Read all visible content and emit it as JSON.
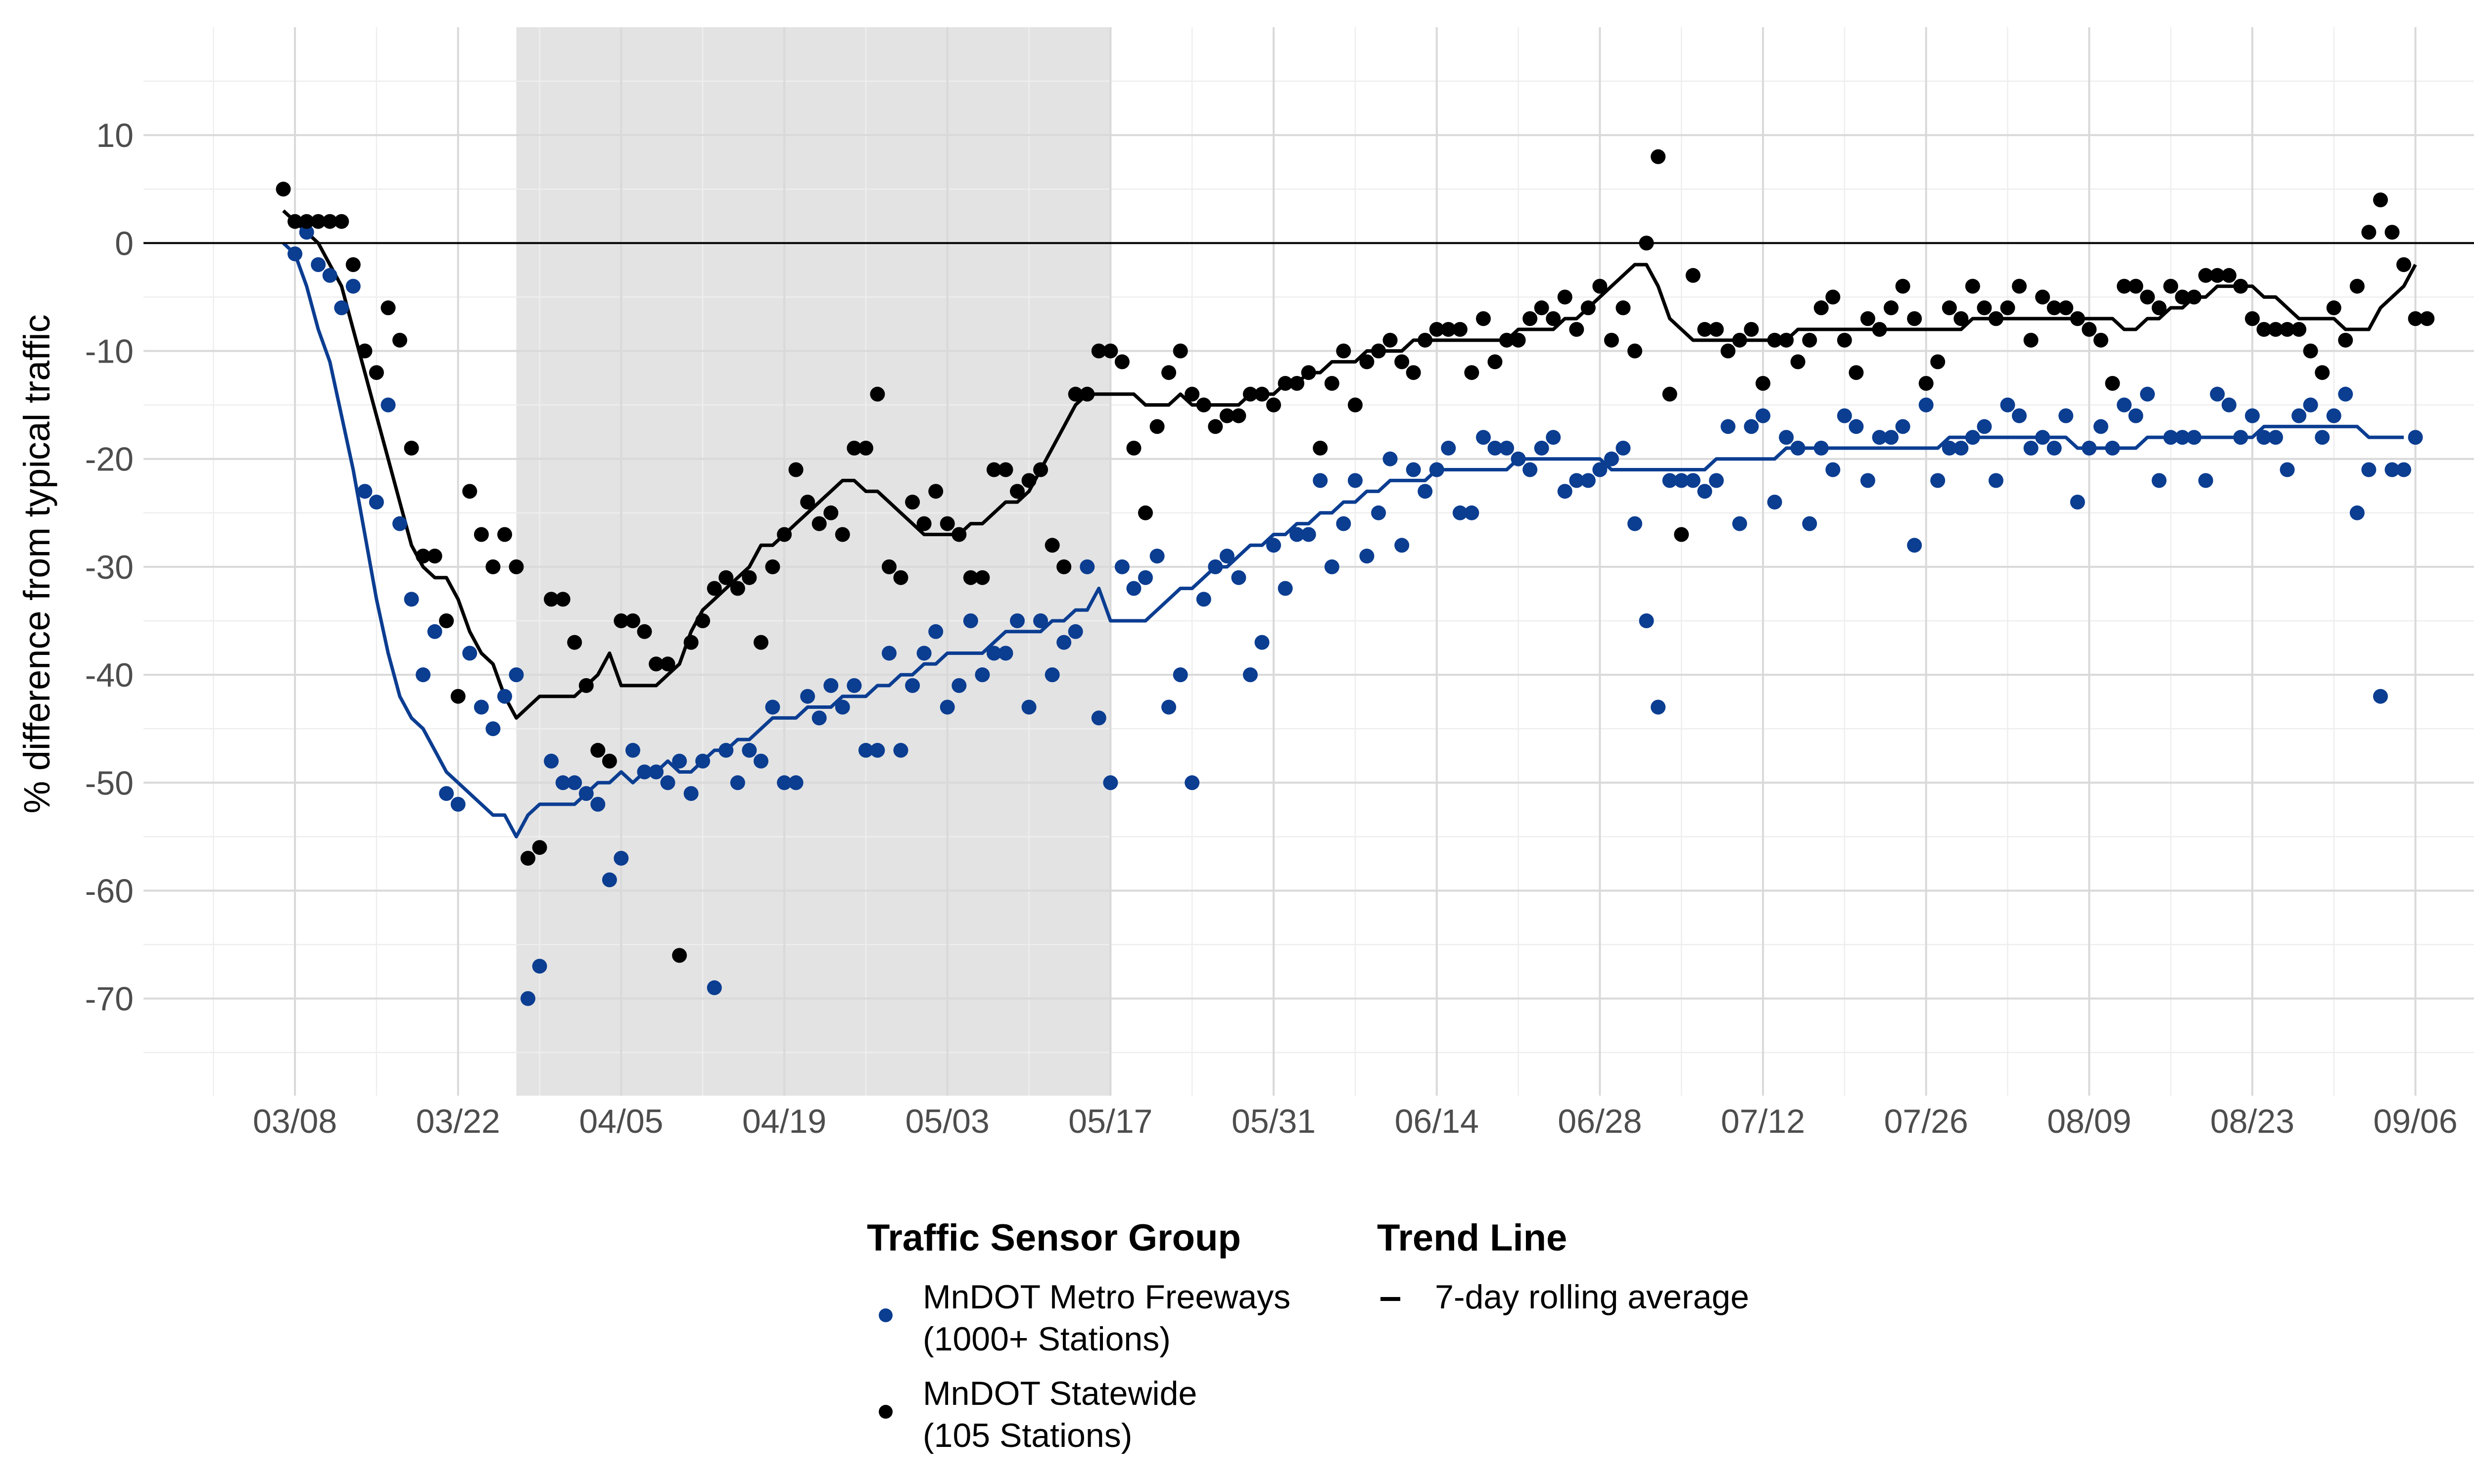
{
  "chart_data": {
    "type": "scatter",
    "title": "",
    "ylabel": "% difference from typical traffic",
    "xlabel": "",
    "x_axis": {
      "type": "date",
      "range": [
        "2020-02-24",
        "2020-09-14"
      ],
      "ticks": [
        {
          "date": "2020-03-08",
          "label": "03/08"
        },
        {
          "date": "2020-03-22",
          "label": "03/22"
        },
        {
          "date": "2020-04-05",
          "label": "04/05"
        },
        {
          "date": "2020-04-19",
          "label": "04/19"
        },
        {
          "date": "2020-05-03",
          "label": "05/03"
        },
        {
          "date": "2020-05-17",
          "label": "05/17"
        },
        {
          "date": "2020-05-31",
          "label": "05/31"
        },
        {
          "date": "2020-06-14",
          "label": "06/14"
        },
        {
          "date": "2020-06-28",
          "label": "06/28"
        },
        {
          "date": "2020-07-12",
          "label": "07/12"
        },
        {
          "date": "2020-07-26",
          "label": "07/26"
        },
        {
          "date": "2020-08-09",
          "label": "08/09"
        },
        {
          "date": "2020-08-23",
          "label": "08/23"
        },
        {
          "date": "2020-09-06",
          "label": "09/06"
        }
      ]
    },
    "y_axis": {
      "range": [
        -79,
        20
      ],
      "ticks": [
        10,
        0,
        -10,
        -20,
        -30,
        -40,
        -50,
        -60,
        -70
      ],
      "tick_labels": [
        "10",
        "0",
        "-10",
        "-20",
        "-30",
        "-40",
        "-50",
        "-60",
        "-70"
      ]
    },
    "grid": true,
    "reference_line_y": 0,
    "shaded_region": {
      "start": "2020-03-27",
      "end": "2020-05-17"
    },
    "legend": {
      "position": "bottom",
      "point_title": "Traffic Sensor Group",
      "line_title": "Trend Line",
      "line_label": "7-day rolling average"
    },
    "colors": {
      "metro": "#0B3D91",
      "statewide": "#000000",
      "shade": "#E3E3E3",
      "grid_major": "#D9D9D9",
      "grid_minor": "#EEEEEE"
    },
    "series": [
      {
        "name": "MnDOT Metro Freeways (1000+ Stations)",
        "label_lines": [
          "MnDOT Metro Freeways",
          "(1000+ Stations)"
        ],
        "color": "#0B3D91",
        "start_date": "2020-03-08",
        "values": [
          -1,
          1,
          -2,
          -3,
          -6,
          -4,
          -23,
          -24,
          -15,
          -26,
          -33,
          -40,
          -36,
          -51,
          -52,
          -38,
          -43,
          -45,
          -42,
          -40,
          -70,
          -67,
          -48,
          -50,
          -50,
          -51,
          -52,
          -59,
          -57,
          -47,
          -49,
          -49,
          -50,
          -48,
          -51,
          -48,
          -69,
          -47,
          -50,
          -47,
          -48,
          -43,
          -50,
          -50,
          -42,
          -44,
          -41,
          -43,
          -41,
          -47,
          -47,
          -38,
          -47,
          -41,
          -38,
          -36,
          -43,
          -41,
          -35,
          -40,
          -38,
          -38,
          -35,
          -43,
          -35,
          -40,
          -37,
          -36,
          -30,
          -44,
          -50,
          -30,
          -32,
          -31,
          -29,
          -43,
          -40,
          -50,
          -33,
          -30,
          -29,
          -31,
          -40,
          -37,
          -28,
          -32,
          -27,
          -27,
          -22,
          -30,
          -26,
          -22,
          -29,
          -25,
          -20,
          -28,
          -21,
          -23,
          -21,
          -19,
          -25,
          -25,
          -18,
          -19,
          -19,
          -20,
          -21,
          -19,
          -18,
          -23,
          -22,
          -22,
          -21,
          -20,
          -19,
          -26,
          -35,
          -43,
          -22,
          -22,
          -22,
          -23,
          -22,
          -17,
          -26,
          -17,
          -16,
          -24,
          -18,
          -19,
          -26,
          -19,
          -21,
          -16,
          -17,
          -22,
          -18,
          -18,
          -17,
          -28,
          -15,
          -22,
          -19,
          -19,
          -18,
          -17,
          -22,
          -15,
          -16,
          -19,
          -18,
          -19,
          -16,
          -24,
          -19,
          -17,
          -19,
          -15,
          -16,
          -14,
          -22,
          -18,
          -18,
          -18,
          -22,
          -14,
          -15,
          -18,
          -16,
          -18,
          -18,
          -21,
          -16,
          -15,
          -18,
          -16,
          -14,
          -25,
          -21,
          -42,
          -21,
          -21,
          -18
        ],
        "trend_start_date": "2020-03-07",
        "trend": [
          0,
          -1,
          -4,
          -8,
          -11,
          -16,
          -21,
          -27,
          -33,
          -38,
          -42,
          -44,
          -45,
          -47,
          -49,
          -50,
          -51,
          -52,
          -53,
          -53,
          -55,
          -53,
          -52,
          -52,
          -52,
          -52,
          -51,
          -50,
          -50,
          -49,
          -50,
          -49,
          -49,
          -48,
          -49,
          -49,
          -48,
          -47,
          -47,
          -46,
          -46,
          -45,
          -44,
          -44,
          -44,
          -43,
          -43,
          -43,
          -42,
          -42,
          -42,
          -41,
          -41,
          -40,
          -40,
          -39,
          -39,
          -38,
          -38,
          -38,
          -38,
          -37,
          -36,
          -36,
          -36,
          -36,
          -35,
          -35,
          -34,
          -34,
          -32,
          -35,
          -35,
          -35,
          -35,
          -34,
          -33,
          -32,
          -32,
          -31,
          -30,
          -30,
          -29,
          -28,
          -28,
          -27,
          -27,
          -26,
          -26,
          -25,
          -25,
          -24,
          -24,
          -23,
          -23,
          -22,
          -22,
          -22,
          -22,
          -21,
          -21,
          -21,
          -21,
          -21,
          -21,
          -21,
          -20,
          -20,
          -20,
          -20,
          -20,
          -20,
          -20,
          -20,
          -21,
          -21,
          -21,
          -21,
          -21,
          -21,
          -21,
          -21,
          -21,
          -20,
          -20,
          -20,
          -20,
          -20,
          -20,
          -19,
          -19,
          -19,
          -19,
          -19,
          -19,
          -19,
          -19,
          -19,
          -19,
          -19,
          -19,
          -19,
          -19,
          -18,
          -18,
          -18,
          -18,
          -18,
          -18,
          -18,
          -18,
          -18,
          -18,
          -18,
          -19,
          -19,
          -19,
          -19,
          -19,
          -19,
          -18,
          -18,
          -18,
          -18,
          -18,
          -18,
          -18,
          -18,
          -18,
          -18,
          -17,
          -17,
          -17,
          -17,
          -17,
          -17,
          -17,
          -17,
          -17,
          -18,
          -18,
          -18,
          -18
        ]
      },
      {
        "name": "MnDOT Statewide (105 Stations)",
        "label_lines": [
          "MnDOT Statewide",
          "(105 Stations)"
        ],
        "color": "#000000",
        "start_date": "2020-03-07",
        "values": [
          5,
          2,
          2,
          2,
          2,
          2,
          -2,
          -10,
          -12,
          -6,
          -9,
          -19,
          -29,
          -29,
          -35,
          -42,
          -23,
          -27,
          -30,
          -27,
          -30,
          -57,
          -56,
          -33,
          -33,
          -37,
          -41,
          -47,
          -48,
          -35,
          -35,
          -36,
          -39,
          -39,
          -66,
          -37,
          -35,
          -32,
          -31,
          -32,
          -31,
          -37,
          -30,
          -27,
          -21,
          -24,
          -26,
          -25,
          -27,
          -19,
          -19,
          -14,
          -30,
          -31,
          -24,
          -26,
          -23,
          -26,
          -27,
          -31,
          -31,
          -21,
          -21,
          -23,
          -22,
          -21,
          -28,
          -30,
          -14,
          -14,
          -10,
          -10,
          -11,
          -19,
          -25,
          -17,
          -12,
          -10,
          -14,
          -15,
          -17,
          -16,
          -16,
          -14,
          -14,
          -15,
          -13,
          -13,
          -12,
          -19,
          -13,
          -10,
          -15,
          -11,
          -10,
          -9,
          -11,
          -12,
          -9,
          -8,
          -8,
          -8,
          -12,
          -7,
          -11,
          -9,
          -9,
          -7,
          -6,
          -7,
          -5,
          -8,
          -6,
          -4,
          -9,
          -6,
          -10,
          0,
          8,
          -14,
          -27,
          -3,
          -8,
          -8,
          -10,
          -9,
          -8,
          -13,
          -9,
          -9,
          -11,
          -9,
          -6,
          -5,
          -9,
          -12,
          -7,
          -8,
          -6,
          -4,
          -7,
          -13,
          -11,
          -6,
          -7,
          -4,
          -6,
          -7,
          -6,
          -4,
          -9,
          -5,
          -6,
          -6,
          -7,
          -8,
          -9,
          -13,
          -4,
          -4,
          -5,
          -6,
          -4,
          -5,
          -5,
          -3,
          -3,
          -3,
          -4,
          -7,
          -8,
          -8,
          -8,
          -8,
          -10,
          -12,
          -6,
          -9,
          -4,
          1,
          4,
          1,
          -2,
          -7,
          -7
        ],
        "trend_start_date": "2020-03-07",
        "trend": [
          3,
          2,
          1,
          0,
          -2,
          -4,
          -8,
          -12,
          -16,
          -20,
          -24,
          -28,
          -30,
          -31,
          -31,
          -33,
          -36,
          -38,
          -39,
          -42,
          -44,
          -43,
          -42,
          -42,
          -42,
          -42,
          -41,
          -40,
          -38,
          -41,
          -41,
          -41,
          -41,
          -40,
          -39,
          -36,
          -34,
          -33,
          -32,
          -31,
          -30,
          -28,
          -28,
          -27,
          -26,
          -25,
          -24,
          -23,
          -22,
          -22,
          -23,
          -23,
          -24,
          -25,
          -26,
          -27,
          -27,
          -27,
          -27,
          -26,
          -26,
          -25,
          -24,
          -24,
          -23,
          -21,
          -19,
          -17,
          -15,
          -14,
          -14,
          -14,
          -14,
          -14,
          -15,
          -15,
          -15,
          -14,
          -15,
          -15,
          -15,
          -15,
          -15,
          -14,
          -14,
          -14,
          -13,
          -13,
          -12,
          -12,
          -11,
          -11,
          -11,
          -10,
          -10,
          -10,
          -10,
          -9,
          -9,
          -9,
          -9,
          -9,
          -9,
          -9,
          -9,
          -9,
          -8,
          -8,
          -8,
          -8,
          -7,
          -7,
          -6,
          -5,
          -4,
          -3,
          -2,
          -2,
          -4,
          -7,
          -8,
          -9,
          -9,
          -9,
          -9,
          -9,
          -9,
          -9,
          -9,
          -9,
          -8,
          -8,
          -8,
          -8,
          -8,
          -8,
          -8,
          -8,
          -8,
          -8,
          -8,
          -8,
          -8,
          -8,
          -8,
          -7,
          -7,
          -7,
          -7,
          -7,
          -7,
          -7,
          -7,
          -7,
          -7,
          -7,
          -7,
          -7,
          -8,
          -8,
          -7,
          -7,
          -6,
          -6,
          -5,
          -5,
          -4,
          -4,
          -4,
          -4,
          -5,
          -5,
          -6,
          -7,
          -7,
          -7,
          -7,
          -8,
          -8,
          -8,
          -6,
          -5,
          -4,
          -2
        ]
      }
    ]
  }
}
